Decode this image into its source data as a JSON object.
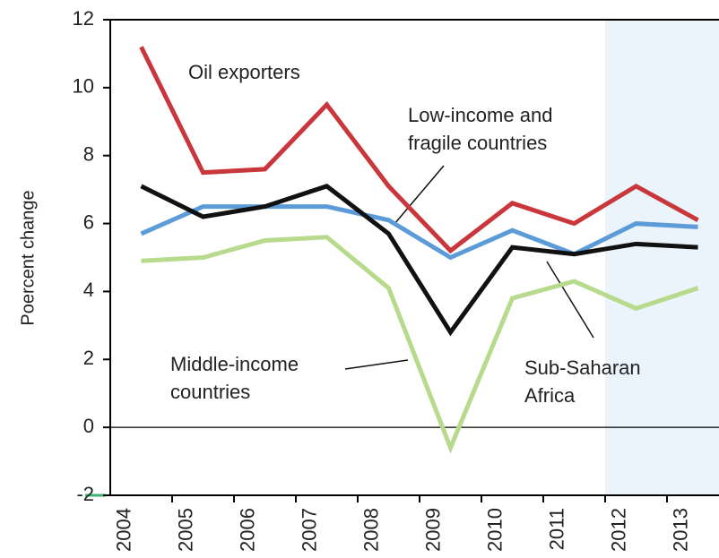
{
  "chart_data": {
    "type": "line",
    "ylabel": "Poercent change",
    "categories": [
      "2004",
      "2005",
      "2006",
      "2007",
      "2008",
      "2009",
      "2010",
      "2011",
      "2012",
      "2013"
    ],
    "ylim": [
      -2,
      12
    ],
    "yticks": [
      -2,
      0,
      2,
      4,
      6,
      8,
      10,
      12
    ],
    "series": [
      {
        "label": [
          "Oil exporters"
        ],
        "color": "#c9363b",
        "values": [
          11.2,
          7.5,
          7.6,
          9.5,
          7.1,
          5.2,
          6.6,
          6.0,
          7.1,
          6.1
        ]
      },
      {
        "label": [
          "Low-income and",
          "fragile countries"
        ],
        "color": "#5b9bd8",
        "values": [
          5.7,
          6.5,
          6.5,
          6.5,
          6.1,
          5.0,
          5.8,
          5.1,
          6.0,
          5.9
        ]
      },
      {
        "label": [
          "Sub-Saharan",
          "Africa"
        ],
        "color": "#111111",
        "values": [
          7.1,
          6.2,
          6.5,
          7.1,
          5.7,
          2.8,
          5.3,
          5.1,
          5.4,
          5.3
        ]
      },
      {
        "label": [
          "Middle-income",
          "countries"
        ],
        "color": "#b7da8c",
        "values": [
          4.9,
          5.0,
          5.5,
          5.6,
          4.1,
          -0.6,
          3.8,
          4.3,
          3.5,
          4.1
        ]
      }
    ]
  }
}
